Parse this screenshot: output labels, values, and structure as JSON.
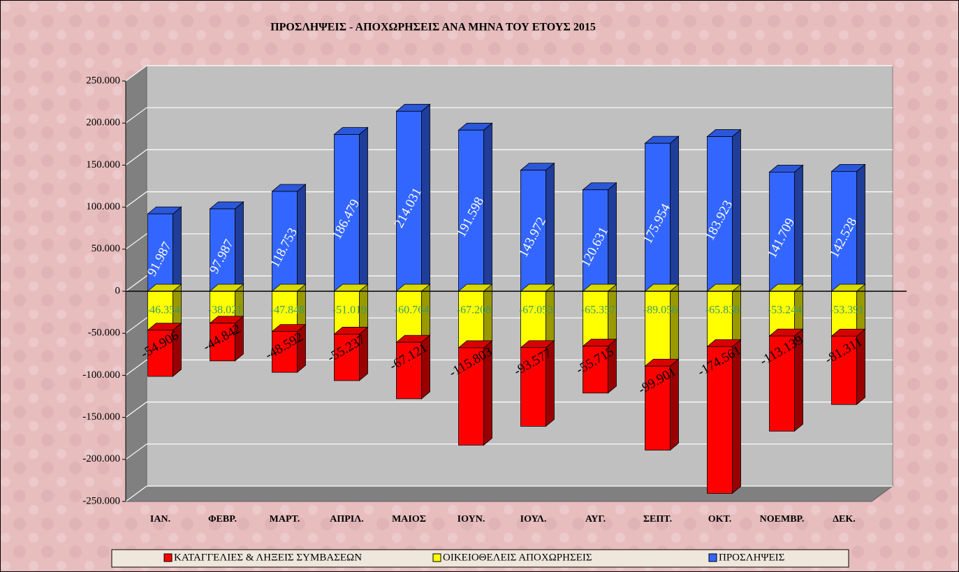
{
  "chart_data": {
    "type": "bar",
    "stacked": true,
    "title": "ΠΡΟΣΛΗΨΕΙΣ - ΑΠΟΧΩΡΗΣΕΙΣ ΑΝΑ ΜΗΝΑ  ΤΟΥ   ΕΤΟΥΣ 2015",
    "categories": [
      "ΙΑΝ.",
      "ΦΕΒΡ.",
      "ΜΑΡΤ.",
      "ΑΠΡΙΛ.",
      "ΜΑΙΟΣ",
      "ΙΟΥΝ.",
      "ΙΟΥΛ.",
      "ΑΥΓ.",
      "ΣΕΠΤ.",
      "ΟΚΤ.",
      "ΝΟΕΜΒΡ.",
      "ΔΕΚ."
    ],
    "ylim": [
      -250000,
      250000
    ],
    "yticks": [
      {
        "value": -250000,
        "label": "-250.000"
      },
      {
        "value": -200000,
        "label": "-200.000"
      },
      {
        "value": -150000,
        "label": "-150.000"
      },
      {
        "value": -100000,
        "label": "-100.000"
      },
      {
        "value": -50000,
        "label": "-50.000"
      },
      0,
      {
        "value": 50000,
        "label": "50.000"
      },
      {
        "value": 100000,
        "label": "100.000"
      },
      {
        "value": 150000,
        "label": "150.000"
      },
      {
        "value": 200000,
        "label": "200.000"
      },
      {
        "value": 250000,
        "label": "250.000"
      }
    ],
    "grid": true,
    "legend": "bottom",
    "series": [
      {
        "name": "ΚΑΤΑΓΓΕΛΙΕΣ & ΛΗΞΕΙΣ ΣΥΜΒΑΣΕΩΝ",
        "color": "#ff0000",
        "label_color": "#000000",
        "values": [
          -54906,
          -44842,
          -48592,
          -55237,
          -67121,
          -115803,
          -93577,
          -55715,
          -99901,
          -174561,
          -113139,
          -81311
        ],
        "value_labels": [
          "-54.906",
          "-44.842",
          "-48.592",
          "-55.237",
          "-67.121",
          "-115.803",
          "-93.577",
          "-55.715",
          "-99.901",
          "-174.561",
          "-113.139",
          "-81.311"
        ]
      },
      {
        "name": "ΟΙΚΕΙΟΘΕΛΕΙΣ ΑΠΟΧΩΡΗΣΕΙΣ",
        "color": "#ffff00",
        "label_color": "#3a9a6a",
        "values": [
          -46354,
          -38021,
          -47848,
          -51019,
          -60764,
          -67208,
          -67053,
          -65357,
          -89056,
          -65838,
          -53244,
          -53391
        ],
        "value_labels": [
          "-46.354",
          "-38.021",
          "-47.848",
          "-51.019",
          "-60.764",
          "-67.208",
          "-67.053",
          "-65.357",
          "-89.056",
          "-65.838",
          "-53.244",
          "-53.391"
        ]
      },
      {
        "name": "ΠΡΟΣΛΗΨΕΙΣ",
        "color": "#3366ff",
        "label_color": "#ffffff",
        "values": [
          91987,
          97987,
          118753,
          186479,
          214031,
          191598,
          143972,
          120631,
          175954,
          183923,
          141709,
          142528
        ],
        "value_labels": [
          "91.987",
          "97.987",
          "118.753",
          "186.479",
          "214.031",
          "191.598",
          "143.972",
          "120.631",
          "175.954",
          "183.923",
          "141.709",
          "142.528"
        ]
      }
    ]
  }
}
